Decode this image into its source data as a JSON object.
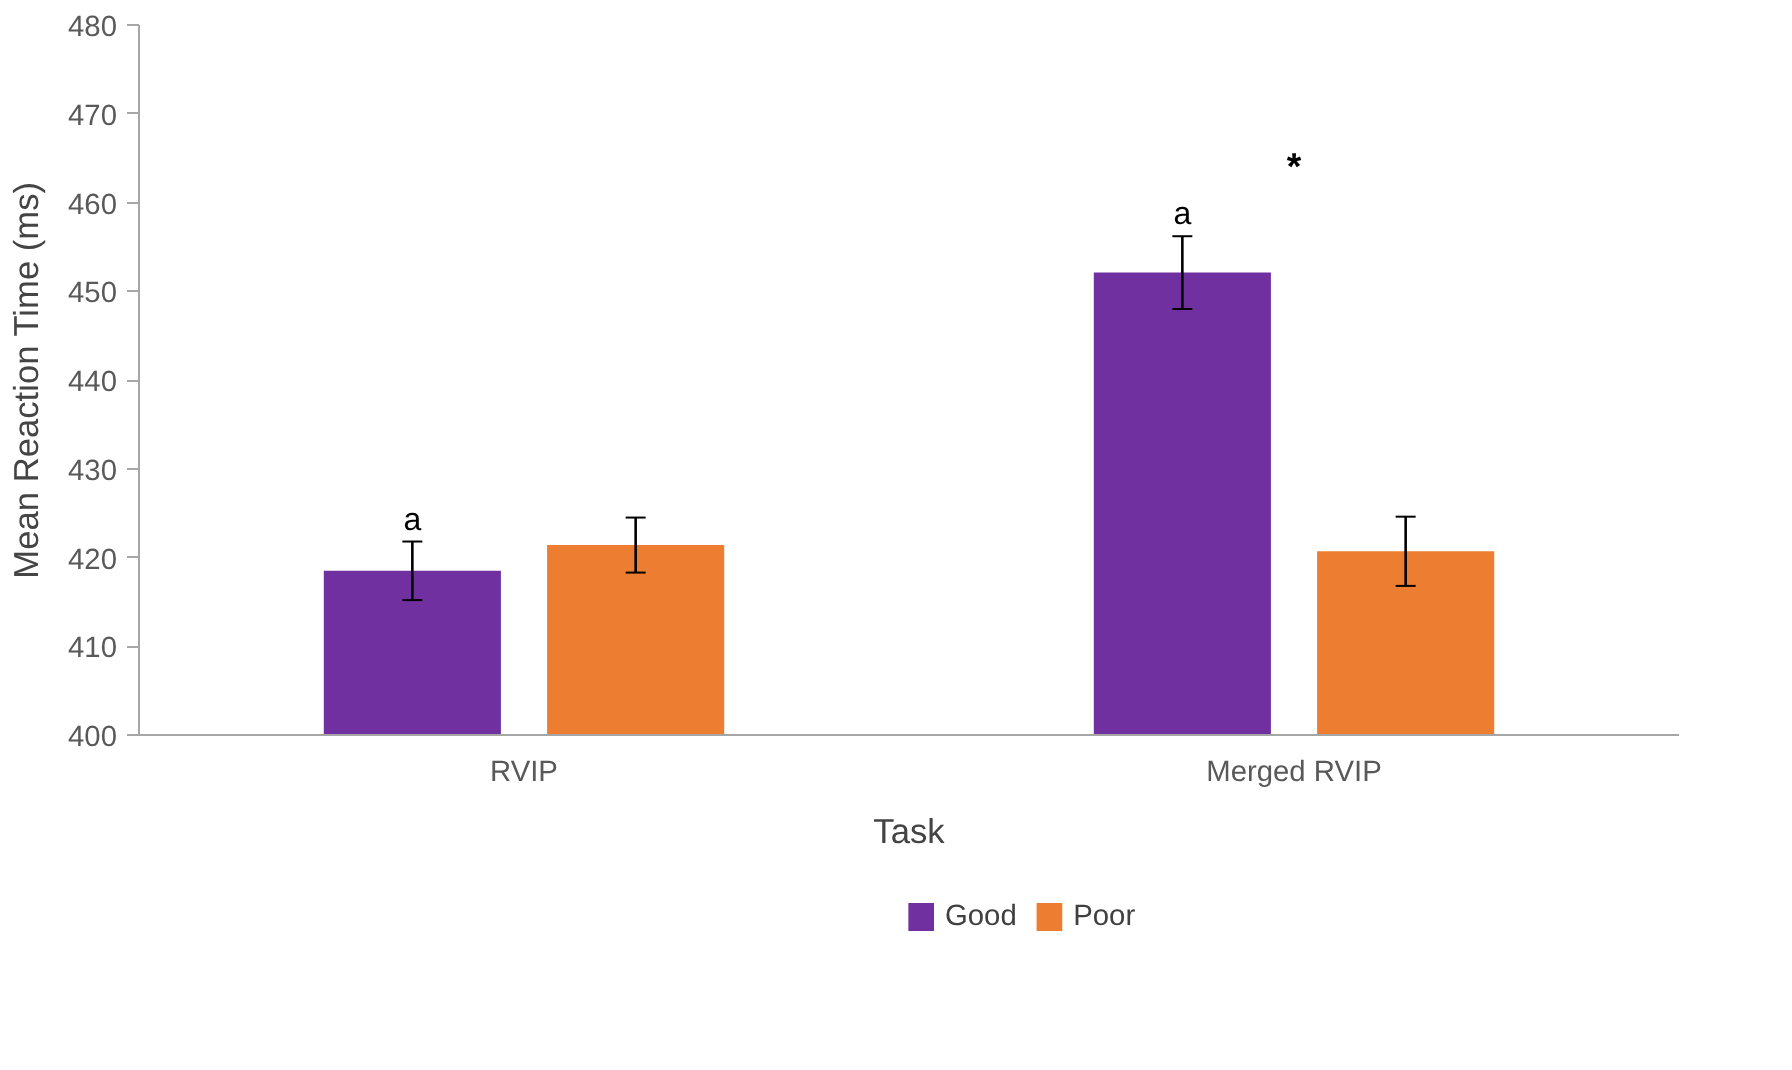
{
  "chart_data": {
    "type": "bar",
    "xlabel": "Task",
    "ylabel": "Mean Reaction Time (ms)",
    "categories": [
      "RVIP",
      "Merged RVIP"
    ],
    "series": [
      {
        "name": "Good",
        "color": "#7030a0",
        "values": [
          418.5,
          452.1
        ],
        "errors": [
          3.3,
          4.1
        ]
      },
      {
        "name": "Poor",
        "color": "#ed7d31",
        "values": [
          421.4,
          420.7
        ],
        "errors": [
          3.1,
          3.9
        ]
      }
    ],
    "ylim": [
      400,
      480
    ],
    "yticks": [
      400,
      410,
      420,
      430,
      440,
      450,
      460,
      470,
      480
    ],
    "annotations": [
      "a",
      "a",
      "*"
    ],
    "grid": false,
    "legend": "bottom"
  }
}
